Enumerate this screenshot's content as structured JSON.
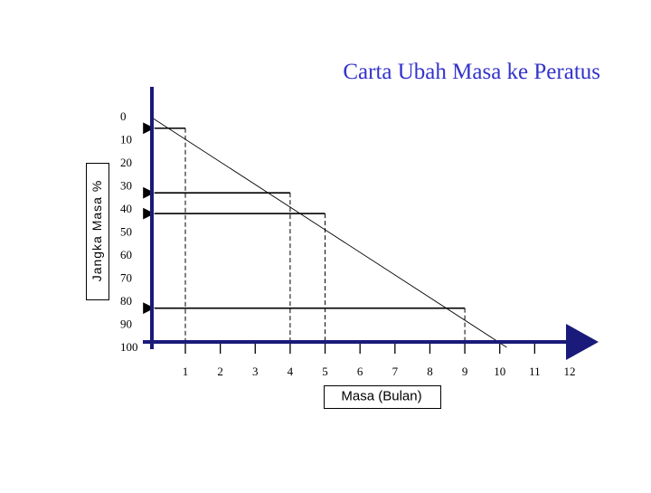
{
  "chart_data": {
    "type": "line",
    "title": "Carta Ubah Masa ke Peratus",
    "xlabel": "Masa  (Bulan)",
    "ylabel": "Jangka  Masa  %",
    "x_ticks": [
      "1",
      "2",
      "3",
      "4",
      "5",
      "6",
      "7",
      "8",
      "9",
      "10",
      "11",
      "12"
    ],
    "y_ticks": [
      "0",
      "10",
      "20",
      "30",
      "40",
      "50",
      "60",
      "70",
      "80",
      "90",
      "100"
    ],
    "xlim": [
      1,
      12
    ],
    "ylim": [
      0,
      100
    ],
    "y_axis_inverted": true,
    "series": [
      {
        "x": [
          0,
          10.2
        ],
        "y": [
          0,
          100
        ]
      }
    ],
    "readings": [
      {
        "x": 1,
        "y": 5
      },
      {
        "x": 4,
        "y": 33
      },
      {
        "x": 5,
        "y": 42
      },
      {
        "x": 9,
        "y": 83
      }
    ]
  }
}
